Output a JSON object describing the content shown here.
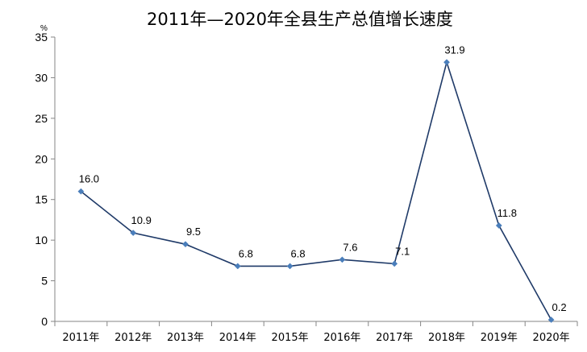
{
  "chart_data": {
    "type": "line",
    "title": "2011年—2020年全县生产总值增长速度",
    "unit": "%",
    "categories": [
      "2011年",
      "2012年",
      "2013年",
      "2014年",
      "2015年",
      "2016年",
      "2017年",
      "2018年",
      "2019年",
      "2020年"
    ],
    "values": [
      16.0,
      10.9,
      9.5,
      6.8,
      6.8,
      7.6,
      7.1,
      31.9,
      11.8,
      0.2
    ],
    "data_labels": [
      "16.0",
      "10.9",
      "9.5",
      "6.8",
      "6.8",
      "7.6",
      "7.1",
      "31.9",
      "11.8",
      "0.2"
    ],
    "ylim": [
      0,
      35
    ],
    "yticks": [
      0,
      5,
      10,
      15,
      20,
      25,
      30,
      35
    ],
    "grid": false,
    "legend": "none",
    "line_color": "#1F3A68",
    "marker_color": "#4A7EBB"
  }
}
